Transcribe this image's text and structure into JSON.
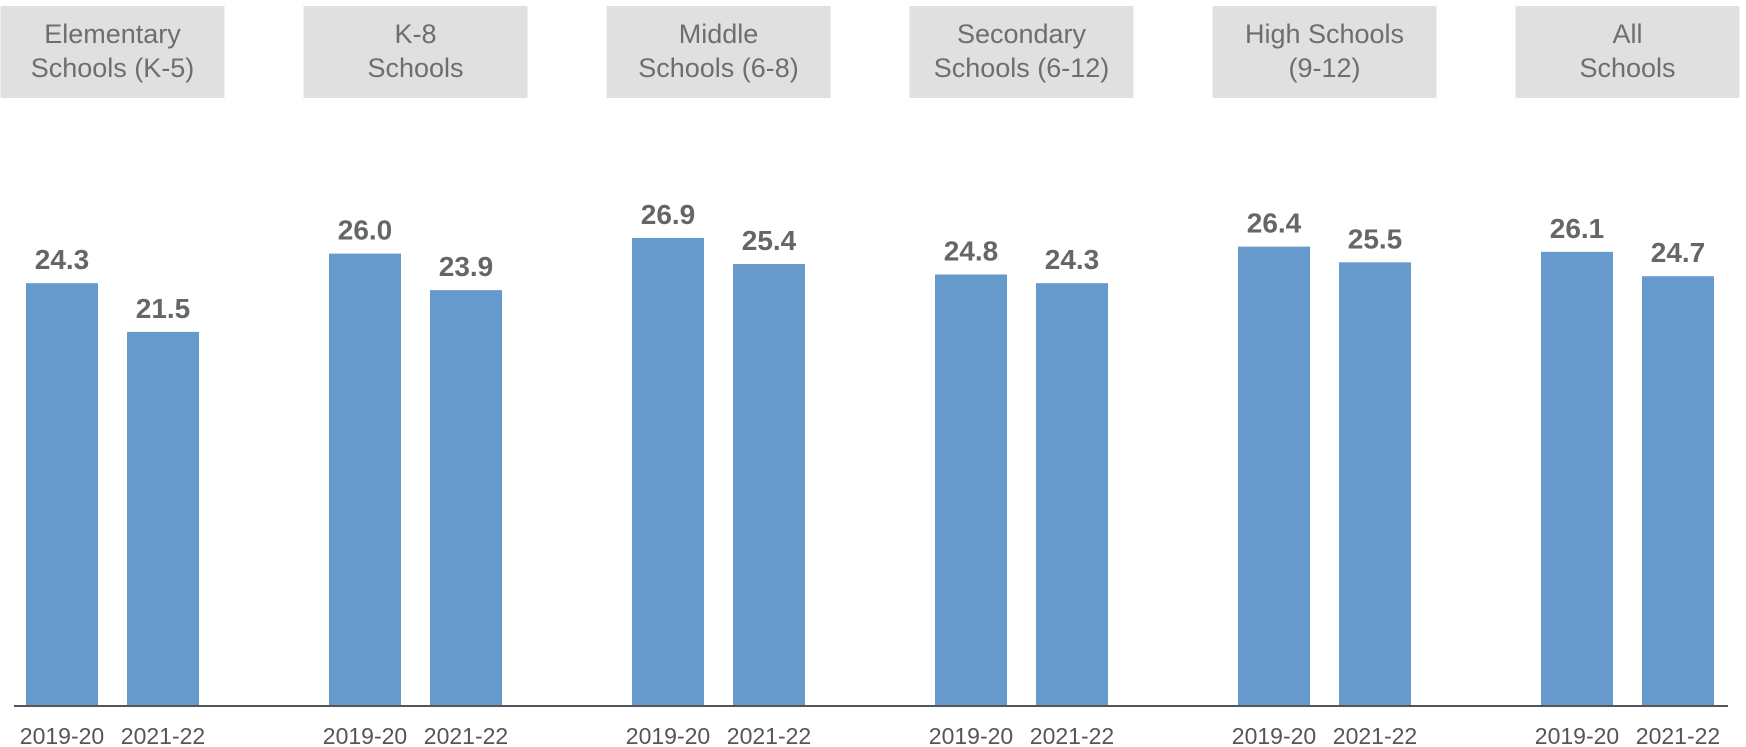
{
  "chart_data": {
    "type": "bar",
    "groups": [
      {
        "title_lines": [
          "Elementary",
          "Schools (K-5)"
        ],
        "categories": [
          "2019-20",
          "2021-22"
        ],
        "values": [
          24.3,
          21.5
        ]
      },
      {
        "title_lines": [
          "K-8",
          "Schools"
        ],
        "categories": [
          "2019-20",
          "2021-22"
        ],
        "values": [
          26.0,
          23.9
        ]
      },
      {
        "title_lines": [
          "Middle",
          "Schools (6-8)"
        ],
        "categories": [
          "2019-20",
          "2021-22"
        ],
        "values": [
          26.9,
          25.4
        ]
      },
      {
        "title_lines": [
          "Secondary",
          "Schools (6-12)"
        ],
        "categories": [
          "2019-20",
          "2021-22"
        ],
        "values": [
          24.8,
          24.3
        ]
      },
      {
        "title_lines": [
          "High Schools",
          "(9-12)"
        ],
        "categories": [
          "2019-20",
          "2021-22"
        ],
        "values": [
          26.4,
          25.5
        ]
      },
      {
        "title_lines": [
          "All",
          "Schools"
        ],
        "categories": [
          "2019-20",
          "2021-22"
        ],
        "values": [
          26.1,
          24.7
        ]
      }
    ],
    "value_format": "one decimal",
    "ylim": [
      0,
      28
    ],
    "grid": false,
    "legend": "none",
    "colors": {
      "bar": "#6699cc",
      "title_box": "#e0e0e0",
      "axis": "#555555"
    }
  }
}
